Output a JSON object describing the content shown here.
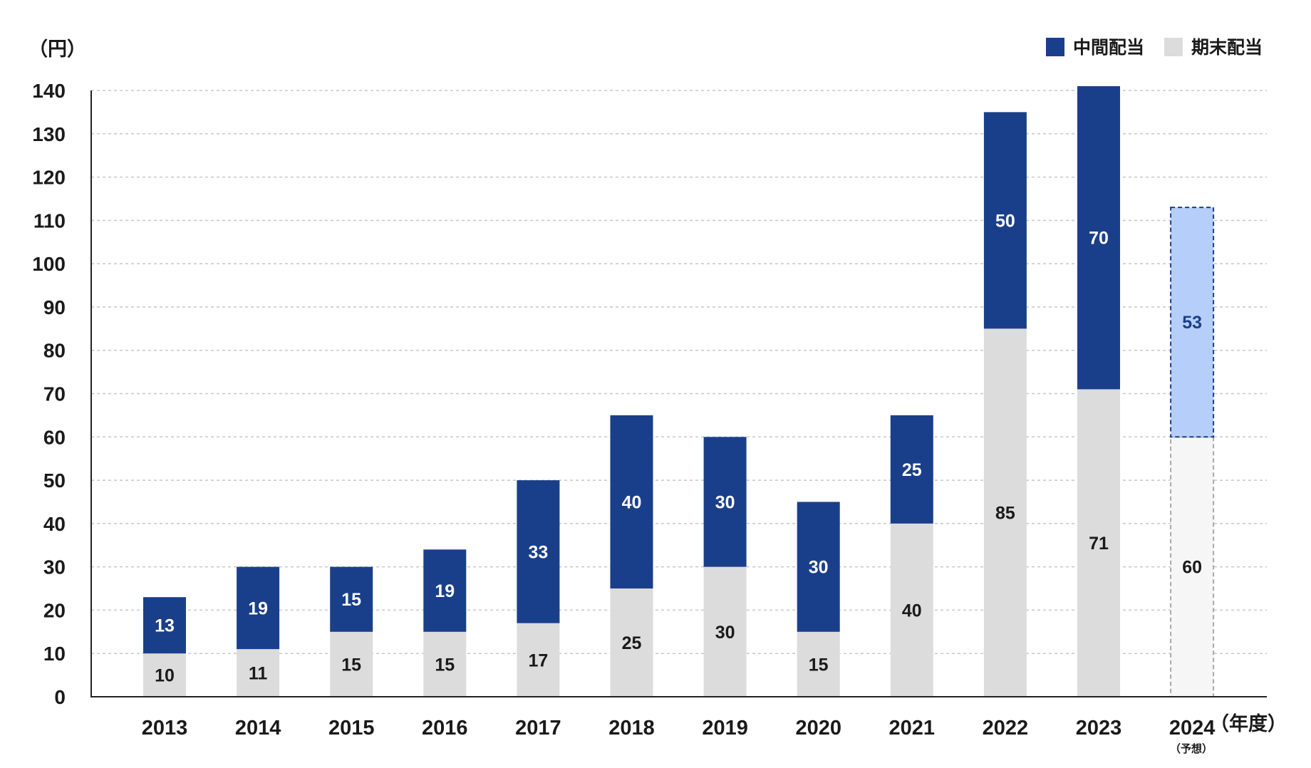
{
  "chart_data": {
    "type": "bar",
    "stacked": true,
    "y_unit_label": "（円）",
    "x_unit_label": "（年度）",
    "forecast_note": "（予想）",
    "categories": [
      "2013",
      "2014",
      "2015",
      "2016",
      "2017",
      "2018",
      "2019",
      "2020",
      "2021",
      "2022",
      "2023",
      "2024"
    ],
    "series": [
      {
        "name": "期末配当",
        "color": "#dcdcdc",
        "values": [
          10,
          11,
          15,
          15,
          17,
          25,
          30,
          15,
          40,
          85,
          71,
          60
        ]
      },
      {
        "name": "中間配当",
        "color": "#1a3f8a",
        "values": [
          13,
          19,
          15,
          19,
          33,
          40,
          30,
          30,
          25,
          50,
          70,
          53
        ]
      }
    ],
    "forecast_category": "2024",
    "forecast_colors": {
      "期末配当": "#f6f6f6",
      "中間配当": "#b6cffa"
    },
    "ylim": [
      0,
      140
    ],
    "yticks": [
      0,
      10,
      20,
      30,
      40,
      50,
      60,
      70,
      80,
      90,
      100,
      110,
      120,
      130,
      140
    ],
    "grid": true,
    "legend_position": "top-right",
    "label_colors": {
      "on_dark": "#ffffff",
      "on_light": "#1a1a1a",
      "on_forecast_top": "#1a3f8a"
    }
  }
}
